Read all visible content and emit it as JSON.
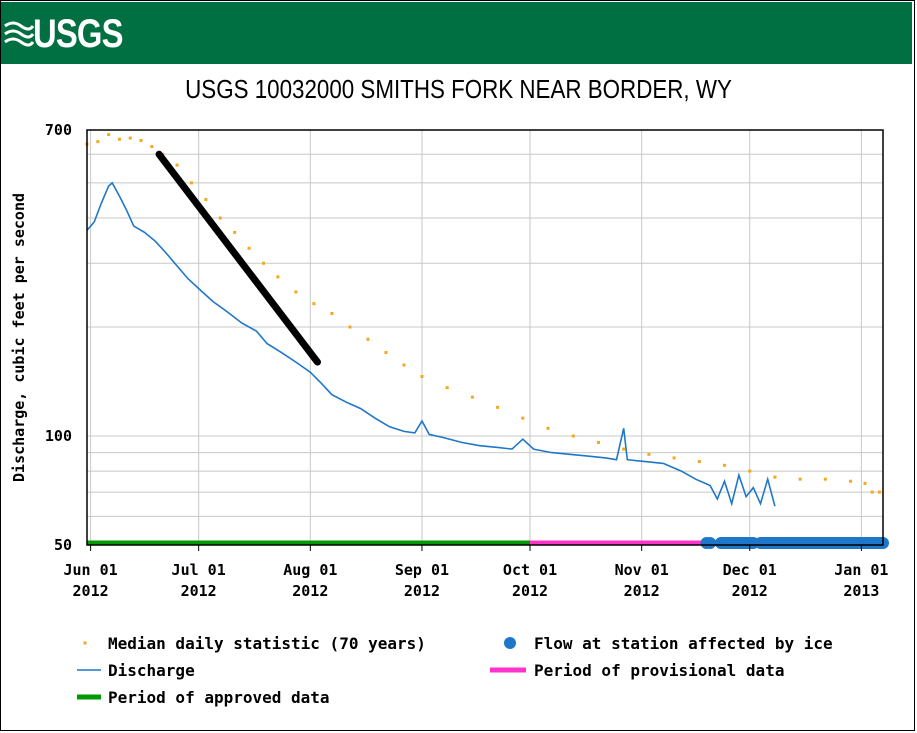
{
  "header": {
    "logo_text": "USGS",
    "brand_color": "#006f41"
  },
  "chart_data": {
    "type": "line",
    "title": "USGS 10032000 SMITHS FORK NEAR BORDER, WY",
    "ylabel": "Discharge, cubic feet per second",
    "xlabel": "",
    "yscale": "log",
    "ylim": [
      50,
      700
    ],
    "xlim": [
      "2012-05-31",
      "2013-01-07"
    ],
    "y_tick_labels": [
      "50",
      "100",
      "700"
    ],
    "y_ticks": [
      50,
      100,
      700
    ],
    "y_minor_gridlines": [
      60,
      70,
      80,
      90,
      200,
      300,
      400,
      500,
      600
    ],
    "x_ticks": [
      {
        "date": "2012-06-01",
        "label": "Jun 01",
        "year": "2012"
      },
      {
        "date": "2012-07-01",
        "label": "Jul 01",
        "year": "2012"
      },
      {
        "date": "2012-08-01",
        "label": "Aug 01",
        "year": "2012"
      },
      {
        "date": "2012-09-01",
        "label": "Sep 01",
        "year": "2012"
      },
      {
        "date": "2012-10-01",
        "label": "Oct 01",
        "year": "2012"
      },
      {
        "date": "2012-11-01",
        "label": "Nov 01",
        "year": "2012"
      },
      {
        "date": "2012-12-01",
        "label": "Dec 01",
        "year": "2012"
      },
      {
        "date": "2013-01-01",
        "label": "Jan 01",
        "year": "2013"
      }
    ],
    "grid": true,
    "colors": {
      "median": "#f4a81d",
      "discharge": "#1f77c9",
      "ice": "#1f77c9",
      "approved": "#009900",
      "provisional": "#ff33cc",
      "annotation": "#000000"
    },
    "series": [
      {
        "name": "Median daily statistic (70 years)",
        "style": "points",
        "points": [
          [
            "2012-05-31",
            640
          ],
          [
            "2012-06-03",
            650
          ],
          [
            "2012-06-06",
            680
          ],
          [
            "2012-06-09",
            660
          ],
          [
            "2012-06-12",
            665
          ],
          [
            "2012-06-15",
            655
          ],
          [
            "2012-06-18",
            630
          ],
          [
            "2012-06-21",
            600
          ],
          [
            "2012-06-25",
            560
          ],
          [
            "2012-06-29",
            500
          ],
          [
            "2012-07-03",
            450
          ],
          [
            "2012-07-07",
            400
          ],
          [
            "2012-07-11",
            365
          ],
          [
            "2012-07-15",
            330
          ],
          [
            "2012-07-19",
            300
          ],
          [
            "2012-07-23",
            275
          ],
          [
            "2012-07-28",
            250
          ],
          [
            "2012-08-02",
            232
          ],
          [
            "2012-08-07",
            218
          ],
          [
            "2012-08-12",
            200
          ],
          [
            "2012-08-17",
            185
          ],
          [
            "2012-08-22",
            170
          ],
          [
            "2012-08-27",
            157
          ],
          [
            "2012-09-01",
            146
          ],
          [
            "2012-09-08",
            136
          ],
          [
            "2012-09-15",
            128
          ],
          [
            "2012-09-22",
            120
          ],
          [
            "2012-09-29",
            112
          ],
          [
            "2012-10-06",
            105
          ],
          [
            "2012-10-13",
            100
          ],
          [
            "2012-10-20",
            96
          ],
          [
            "2012-10-27",
            92
          ],
          [
            "2012-11-03",
            89
          ],
          [
            "2012-11-10",
            87
          ],
          [
            "2012-11-17",
            85
          ],
          [
            "2012-11-24",
            83
          ],
          [
            "2012-12-01",
            80
          ],
          [
            "2012-12-08",
            77
          ],
          [
            "2012-12-15",
            76
          ],
          [
            "2012-12-22",
            76
          ],
          [
            "2012-12-29",
            75
          ],
          [
            "2013-01-02",
            74
          ],
          [
            "2013-01-04",
            70
          ],
          [
            "2013-01-06",
            70
          ]
        ]
      },
      {
        "name": "Discharge",
        "style": "line",
        "points": [
          [
            "2012-05-31",
            370
          ],
          [
            "2012-06-02",
            390
          ],
          [
            "2012-06-04",
            440
          ],
          [
            "2012-06-06",
            490
          ],
          [
            "2012-06-07",
            500
          ],
          [
            "2012-06-09",
            460
          ],
          [
            "2012-06-11",
            420
          ],
          [
            "2012-06-13",
            380
          ],
          [
            "2012-06-16",
            365
          ],
          [
            "2012-06-19",
            345
          ],
          [
            "2012-06-22",
            320
          ],
          [
            "2012-06-25",
            295
          ],
          [
            "2012-06-28",
            272
          ],
          [
            "2012-07-02",
            250
          ],
          [
            "2012-07-05",
            235
          ],
          [
            "2012-07-09",
            220
          ],
          [
            "2012-07-13",
            205
          ],
          [
            "2012-07-17",
            195
          ],
          [
            "2012-07-20",
            180
          ],
          [
            "2012-07-24",
            170
          ],
          [
            "2012-07-28",
            160
          ],
          [
            "2012-08-01",
            150
          ],
          [
            "2012-08-04",
            140
          ],
          [
            "2012-08-07",
            130
          ],
          [
            "2012-08-11",
            124
          ],
          [
            "2012-08-15",
            119
          ],
          [
            "2012-08-19",
            112
          ],
          [
            "2012-08-23",
            106
          ],
          [
            "2012-08-27",
            103
          ],
          [
            "2012-08-30",
            102
          ],
          [
            "2012-09-01",
            110
          ],
          [
            "2012-09-03",
            101
          ],
          [
            "2012-09-07",
            99
          ],
          [
            "2012-09-12",
            96
          ],
          [
            "2012-09-17",
            94
          ],
          [
            "2012-09-22",
            93
          ],
          [
            "2012-09-26",
            92
          ],
          [
            "2012-09-29",
            98
          ],
          [
            "2012-10-02",
            92
          ],
          [
            "2012-10-07",
            90
          ],
          [
            "2012-10-12",
            89
          ],
          [
            "2012-10-17",
            88
          ],
          [
            "2012-10-22",
            87
          ],
          [
            "2012-10-25",
            86
          ],
          [
            "2012-10-27",
            105
          ],
          [
            "2012-10-28",
            86
          ],
          [
            "2012-11-02",
            85
          ],
          [
            "2012-11-07",
            84
          ],
          [
            "2012-11-12",
            80
          ],
          [
            "2012-11-16",
            76
          ],
          [
            "2012-11-20",
            73
          ],
          [
            "2012-11-22",
            67
          ],
          [
            "2012-11-24",
            75
          ],
          [
            "2012-11-26",
            65
          ],
          [
            "2012-11-28",
            78
          ],
          [
            "2012-11-30",
            68
          ],
          [
            "2012-12-02",
            72
          ],
          [
            "2012-12-04",
            65
          ],
          [
            "2012-12-06",
            76
          ],
          [
            "2012-12-08",
            64
          ]
        ]
      },
      {
        "name": "Flow at station affected by ice",
        "style": "dots",
        "points": [
          [
            "2012-11-19",
            50
          ],
          [
            "2012-11-20",
            50
          ]
        ]
      }
    ],
    "ice_periods": [
      [
        "2012-11-23",
        "2012-12-02"
      ],
      [
        "2012-12-04",
        "2013-01-07"
      ]
    ],
    "approval_periods": [
      {
        "name": "Period of approved data",
        "start": "2012-05-31",
        "end": "2012-10-01"
      },
      {
        "name": "Period of provisional data",
        "start": "2012-10-01",
        "end": "2013-01-07"
      }
    ],
    "annotation_line": {
      "from": [
        "2012-06-20",
        600
      ],
      "to": [
        "2012-08-03",
        160
      ]
    },
    "legend": [
      {
        "label": "Median daily statistic (70 years)",
        "symbol": "median"
      },
      {
        "label": "Flow at station affected by ice",
        "symbol": "ice"
      },
      {
        "label": "Discharge",
        "symbol": "discharge"
      },
      {
        "label": "Period of provisional data",
        "symbol": "provisional"
      },
      {
        "label": "Period of approved data",
        "symbol": "approved"
      }
    ]
  }
}
